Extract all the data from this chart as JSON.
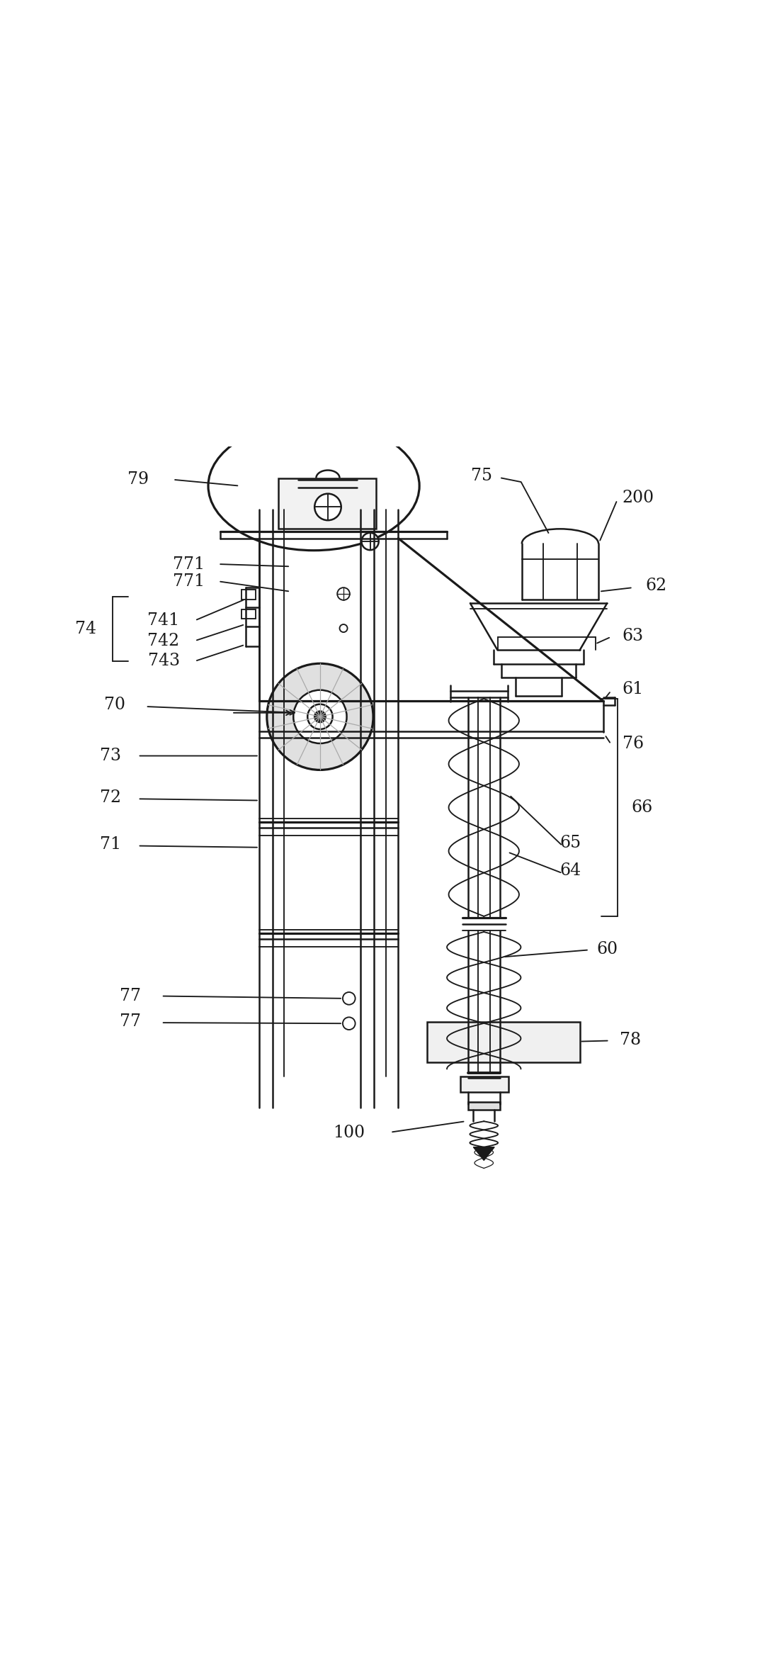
{
  "bg_color": "#ffffff",
  "line_color": "#1a1a1a",
  "line_width": 1.8,
  "figsize": [
    11.07,
    23.65
  ],
  "dpi": 100
}
